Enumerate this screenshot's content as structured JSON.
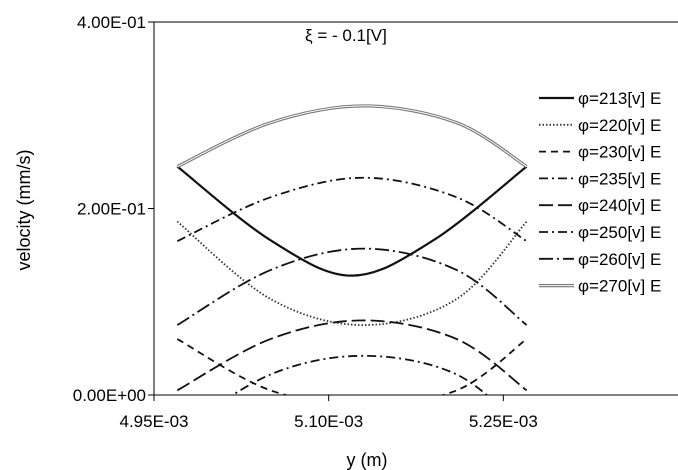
{
  "chart_data": {
    "type": "line",
    "annotation": "ξ = - 0.1[V]",
    "xlabel": "y (m)",
    "ylabel": "velocity (mm/s)",
    "xlim": [
      0.00495,
      0.0054
    ],
    "ylim": [
      0,
      0.4
    ],
    "x_tick_labels": [
      "4.95E-03",
      "5.10E-03",
      "5.25E-03"
    ],
    "x_tick_values": [
      0.00495,
      0.0051,
      0.00525
    ],
    "y_tick_labels": [
      "0.00E+00",
      "2.00E-01",
      "4.00E-01"
    ],
    "y_tick_values": [
      0,
      0.2,
      0.4
    ],
    "grid": false,
    "legend_position": "right",
    "series": [
      {
        "name": "φ=213[v] E",
        "style": "solid",
        "color": "#111111",
        "x": [
          0.00497,
          0.00505,
          0.00512,
          0.00519,
          0.00527
        ],
        "y": [
          0.245,
          0.166,
          0.128,
          0.166,
          0.245
        ]
      },
      {
        "name": "φ=220[v] E",
        "style": "dotted",
        "color": "#333333",
        "x": [
          0.00497,
          0.00505,
          0.00513,
          0.00521,
          0.00527
        ],
        "y": [
          0.186,
          0.103,
          0.075,
          0.103,
          0.186
        ]
      },
      {
        "name": "φ=230[v] E",
        "style": "dashed",
        "color": "#111111",
        "x": [
          0.00497,
          0.00505,
          0.00513,
          0.00521,
          0.00527
        ],
        "y": [
          0.06,
          0.005,
          -0.01,
          0.005,
          0.06
        ]
      },
      {
        "name": "φ=235[v] E",
        "style": "dashdot",
        "color": "#111111",
        "x": [
          0.00497,
          0.00505,
          0.00513,
          0.00521,
          0.00527
        ],
        "y": [
          0.165,
          0.212,
          0.233,
          0.212,
          0.165
        ]
      },
      {
        "name": "φ=240[v] E",
        "style": "longdash",
        "color": "#111111",
        "x": [
          0.00497,
          0.00505,
          0.00513,
          0.00521,
          0.00527
        ],
        "y": [
          0.005,
          0.06,
          0.08,
          0.06,
          0.005
        ]
      },
      {
        "name": "φ=250[v] E",
        "style": "dashdot",
        "color": "#111111",
        "x": [
          0.00497,
          0.00505,
          0.00513,
          0.00521,
          0.00527
        ],
        "y": [
          -0.04,
          0.022,
          0.042,
          0.022,
          -0.04
        ]
      },
      {
        "name": "φ=260[v] E",
        "style": "longdashdot",
        "color": "#111111",
        "x": [
          0.00497,
          0.00505,
          0.00513,
          0.00521,
          0.00527
        ],
        "y": [
          0.075,
          0.134,
          0.157,
          0.134,
          0.075
        ]
      },
      {
        "name": "φ=270[v] E",
        "style": "double",
        "color": "#777777",
        "x": [
          0.00497,
          0.00505,
          0.00513,
          0.00521,
          0.00527
        ],
        "y": [
          0.245,
          0.292,
          0.31,
          0.292,
          0.245
        ]
      }
    ]
  }
}
